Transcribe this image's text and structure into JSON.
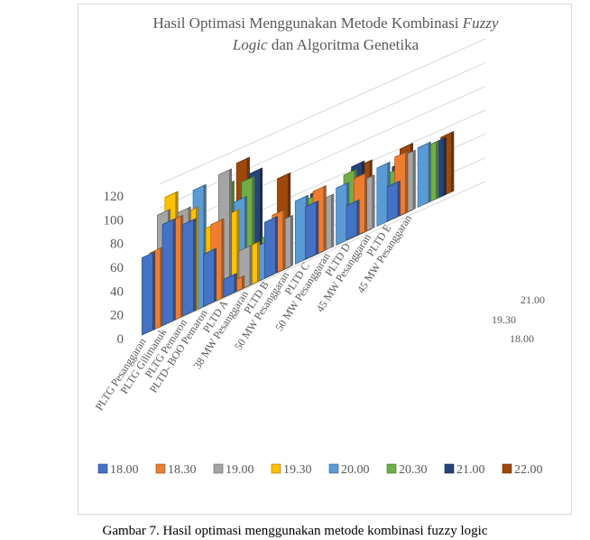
{
  "caption": "Gambar 7. Hasil optimasi menggunakan metode kombinasi fuzzy logic",
  "chart_data": {
    "type": "bar3d",
    "title_line1": "Hasil Optimasi Menggunakan Metode Kombinasi",
    "title_italic1": "Fuzzy",
    "title_italic2": "Logic",
    "title_line2": "dan Algoritma Genetika",
    "categories": [
      "PLTG Pesanggaran",
      "PLTG Gilimanuk",
      "PLTG Pemaron",
      "PLTD- BOO Pemaron",
      "PLTD A",
      "38 MW Pesanggaran",
      "PLTD B",
      "50 MW Pesanggaran",
      "PLTD C",
      "50 MW Pesanggaran",
      "PLTD D",
      "45 MW Pesanggaran",
      "PLTD E",
      "45 MW Pesanggaran"
    ],
    "depth_labels": [
      "18.00",
      "19.30",
      "21.00"
    ],
    "ylim": [
      0,
      120
    ],
    "y_ticks": [
      0,
      20,
      40,
      60,
      80,
      100,
      120
    ],
    "grid": true,
    "legend_position": "bottom",
    "series": [
      {
        "name": "18.00",
        "color": "#4472c4",
        "values": [
          65,
          85,
          77,
          44,
          15,
          0,
          47,
          0,
          44,
          0,
          29,
          0,
          29,
          0
        ]
      },
      {
        "name": "18.30",
        "color": "#ed7d31",
        "values": [
          66,
          85,
          0,
          66,
          10,
          0,
          50,
          0,
          54,
          0,
          49,
          0,
          51,
          0
        ]
      },
      {
        "name": "19.00",
        "color": "#a5a5a5",
        "values": [
          95,
          89,
          0,
          105,
          33,
          0,
          42,
          0,
          44,
          0,
          44,
          0,
          49,
          0
        ]
      },
      {
        "name": "19.30",
        "color": "#ffc000",
        "values": [
          107,
          86,
          65,
          68,
          33,
          0,
          0,
          0,
          0,
          0,
          0,
          0,
          0,
          0
        ]
      },
      {
        "name": "20.00",
        "color": "#5b9bd5",
        "values": [
          0,
          102,
          0,
          76,
          30,
          0,
          53,
          0,
          48,
          0,
          49,
          0,
          50,
          0
        ]
      },
      {
        "name": "20.30",
        "color": "#70ad47",
        "values": [
          0,
          0,
          94,
          90,
          35,
          0,
          50,
          0,
          56,
          0,
          40,
          0,
          48,
          0
        ]
      },
      {
        "name": "21.00",
        "color": "#264478",
        "values": [
          0,
          0,
          0,
          94,
          0,
          0,
          53,
          0,
          60,
          0,
          44,
          0,
          48,
          0
        ]
      },
      {
        "name": "22.00",
        "color": "#9e480e",
        "values": [
          0,
          0,
          108,
          0,
          79,
          0,
          0,
          0,
          58,
          0,
          56,
          0,
          50,
          0
        ]
      }
    ]
  }
}
